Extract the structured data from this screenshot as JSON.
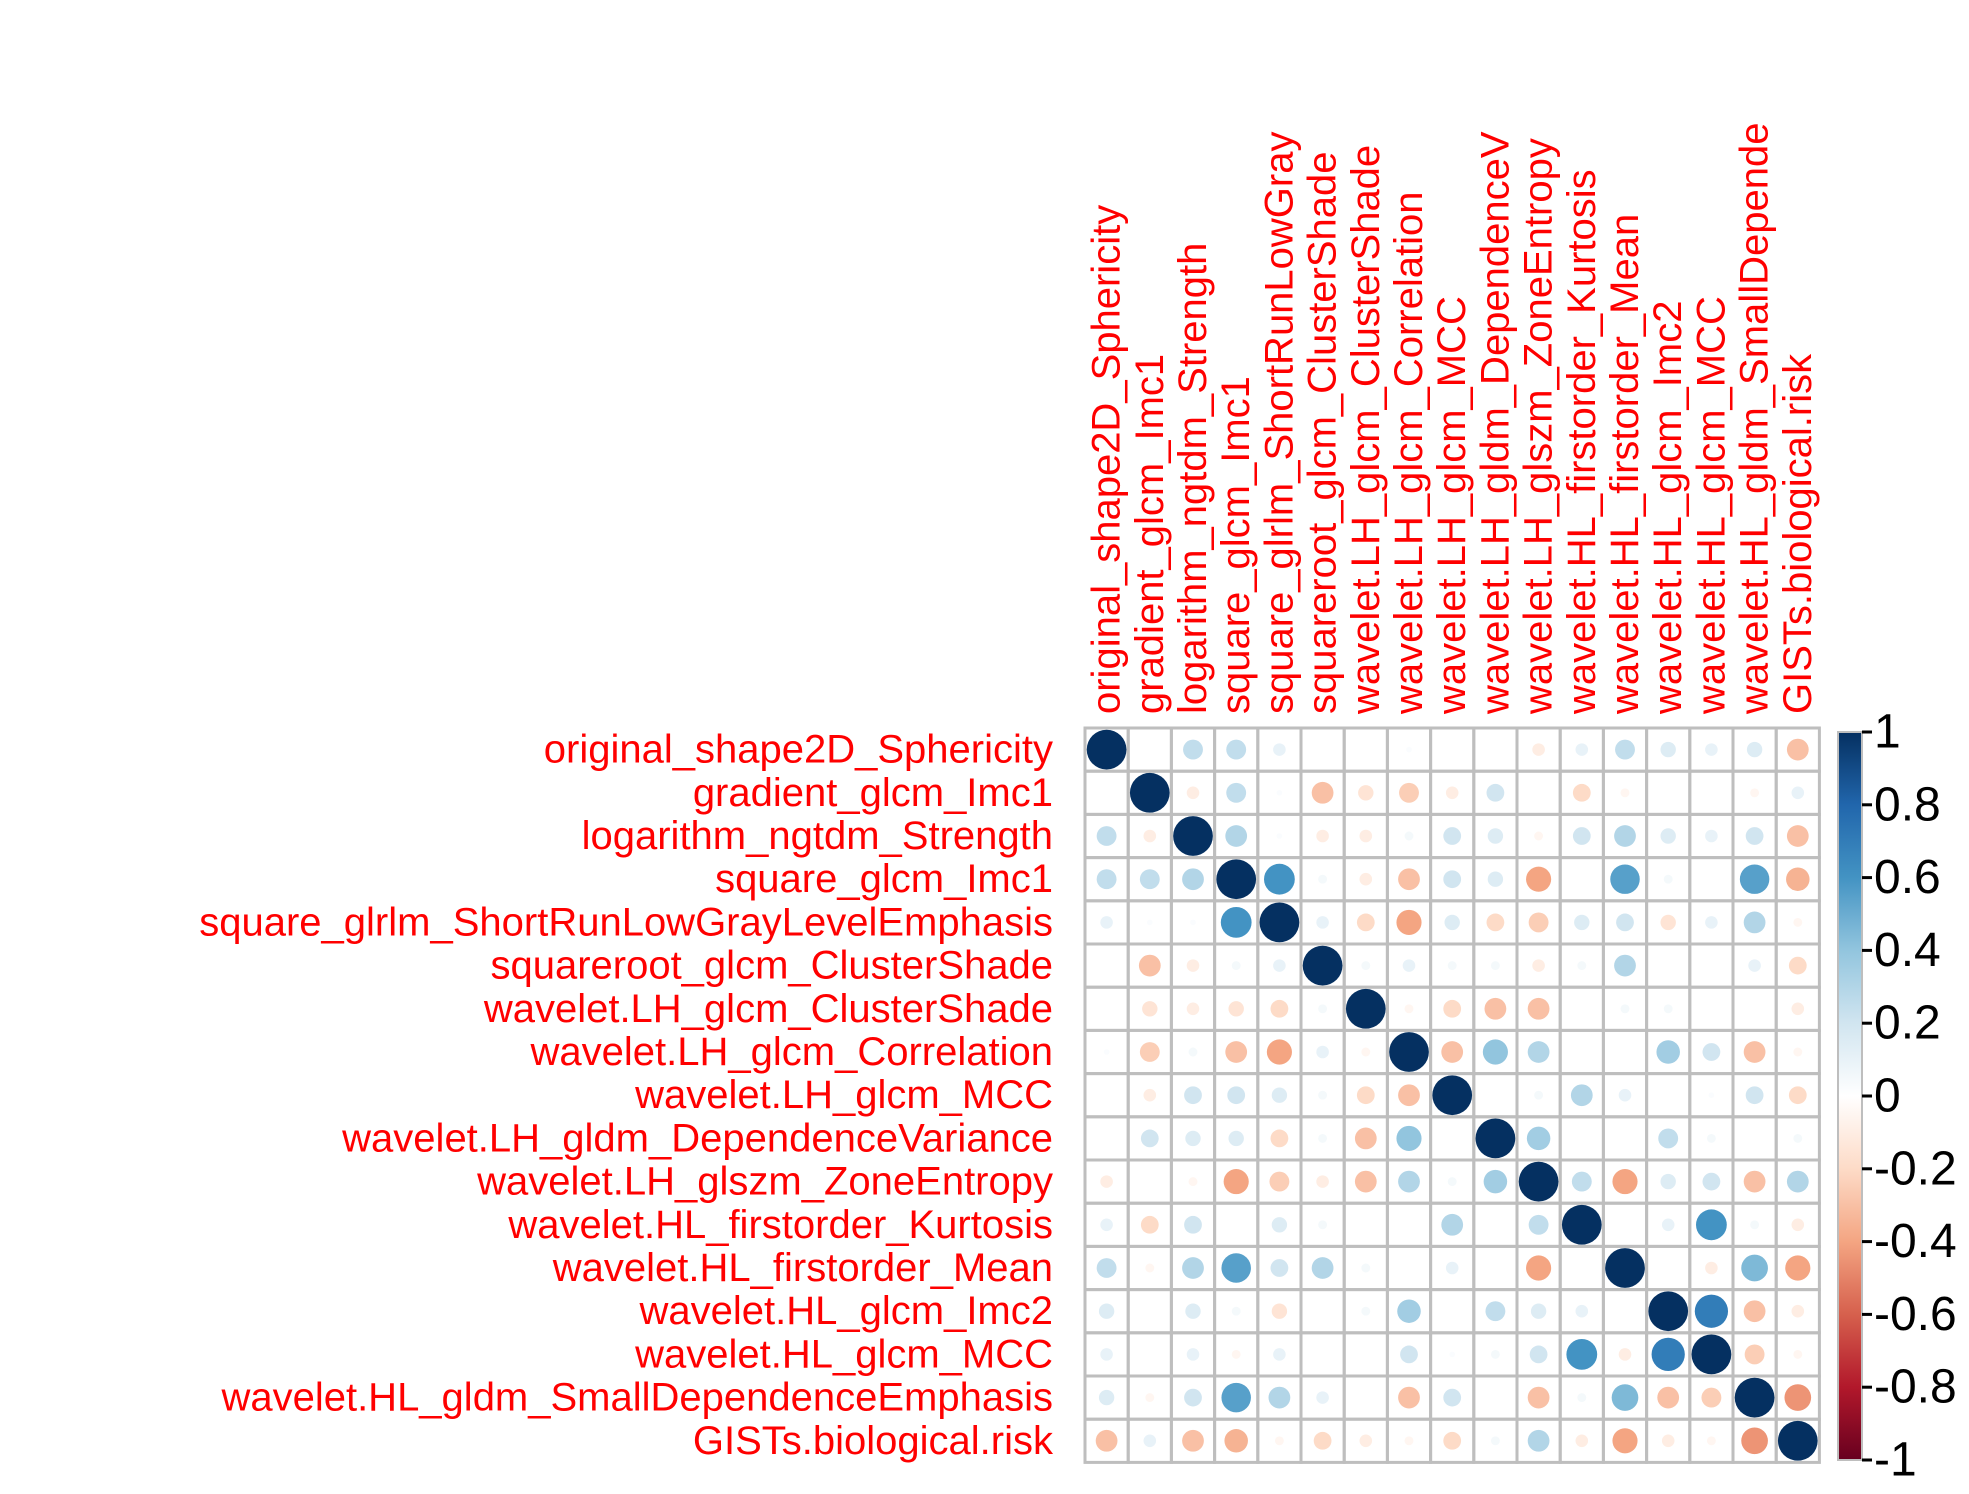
{
  "chart_data": {
    "type": "heatmap",
    "title": "",
    "variables": [
      "original_shape2D_Sphericity",
      "gradient_glcm_Imc1",
      "logarithm_ngtdm_Strength",
      "square_glcm_Imc1",
      "square_glrlm_ShortRunLowGrayLevelEmphasis",
      "squareroot_glcm_ClusterShade",
      "wavelet.LH_glcm_ClusterShade",
      "wavelet.LH_glcm_Correlation",
      "wavelet.LH_glcm_MCC",
      "wavelet.LH_gldm_DependenceVariance",
      "wavelet.LH_glszm_ZoneEntropy",
      "wavelet.HL_firstorder_Kurtosis",
      "wavelet.HL_firstorder_Mean",
      "wavelet.HL_glcm_Imc2",
      "wavelet.HL_glcm_MCC",
      "wavelet.HL_gldm_SmallDependenceEmphasis",
      "GISTs.biological.risk"
    ],
    "column_labels": [
      "original_shape2D_Sphericity",
      "gradient_glcm_Imc1",
      "logarithm_ngtdm_Strength",
      "square_glcm_Imc1",
      "square_glrlm_ShortRunLowGray",
      "squareroot_glcm_ClusterShade",
      "wavelet.LH_glcm_ClusterShade",
      "wavelet.LH_glcm_Correlation",
      "wavelet.LH_glcm_MCC",
      "wavelet.LH_gldm_DependenceV",
      "wavelet.LH_glszm_ZoneEntropy",
      "wavelet.HL_firstorder_Kurtosis",
      "wavelet.HL_firstorder_Mean",
      "wavelet.HL_glcm_Imc2",
      "wavelet.HL_glcm_MCC",
      "wavelet.HL_gldm_SmallDepende",
      "GISTs.biological.risk"
    ],
    "matrix": [
      [
        1,
        0,
        0.25,
        0.25,
        0.1,
        0,
        0,
        0.02,
        0,
        0,
        -0.1,
        0.1,
        0.25,
        0.15,
        0.1,
        0.15,
        -0.3
      ],
      [
        0,
        1,
        -0.1,
        0.25,
        0.02,
        -0.3,
        -0.15,
        -0.25,
        -0.1,
        0.2,
        0,
        -0.2,
        -0.05,
        0,
        0,
        -0.05,
        0.1
      ],
      [
        0.25,
        -0.1,
        1,
        0.3,
        0.02,
        -0.1,
        -0.1,
        0.05,
        0.2,
        0.15,
        -0.05,
        0.2,
        0.3,
        0.15,
        0.1,
        0.2,
        -0.3
      ],
      [
        0.25,
        0.25,
        0.3,
        1,
        0.6,
        0.05,
        -0.1,
        -0.3,
        0.2,
        0.15,
        -0.4,
        0,
        0.55,
        0.05,
        0,
        0.55,
        -0.35
      ],
      [
        0.1,
        0.02,
        0.02,
        0.6,
        1,
        0.1,
        -0.2,
        -0.4,
        0.15,
        -0.2,
        -0.25,
        0.15,
        0.2,
        -0.15,
        0.1,
        0.3,
        -0.05
      ],
      [
        0,
        -0.3,
        -0.1,
        0.05,
        0.1,
        1,
        0.05,
        0.1,
        0.05,
        0.05,
        -0.1,
        0.05,
        0.3,
        0,
        0,
        0.1,
        -0.2
      ],
      [
        0,
        -0.15,
        -0.1,
        -0.15,
        -0.2,
        0.05,
        1,
        -0.05,
        -0.2,
        -0.3,
        -0.3,
        0,
        0.05,
        0.05,
        0,
        0,
        -0.1
      ],
      [
        0.02,
        -0.25,
        0.05,
        -0.3,
        -0.4,
        0.1,
        -0.05,
        1,
        -0.3,
        0.4,
        0.3,
        0,
        0,
        0.35,
        0.2,
        -0.3,
        -0.05
      ],
      [
        0,
        -0.1,
        0.2,
        0.2,
        0.15,
        0.05,
        -0.2,
        -0.3,
        1,
        0,
        0.05,
        0.3,
        0.1,
        0,
        0.02,
        0.2,
        -0.2
      ],
      [
        0,
        0.2,
        0.15,
        0.15,
        -0.2,
        0.05,
        -0.3,
        0.4,
        0,
        1,
        0.35,
        0,
        0,
        0.25,
        0.05,
        0,
        0.05
      ],
      [
        -0.1,
        0,
        -0.05,
        -0.4,
        -0.25,
        -0.1,
        -0.3,
        0.3,
        0.05,
        0.35,
        1,
        0.25,
        -0.4,
        0.15,
        0.2,
        -0.3,
        0.3
      ],
      [
        0.1,
        -0.2,
        0.2,
        0,
        0.15,
        0.05,
        0,
        0,
        0.3,
        0,
        0.25,
        1,
        0,
        0.1,
        0.6,
        0.05,
        -0.1
      ],
      [
        0.25,
        -0.05,
        0.3,
        0.55,
        0.2,
        0.3,
        0.05,
        0,
        0.1,
        0,
        -0.4,
        0,
        1,
        0,
        -0.1,
        0.45,
        -0.4
      ],
      [
        0.15,
        0,
        0.15,
        0.05,
        -0.15,
        0,
        0.05,
        0.35,
        0,
        0.25,
        0.15,
        0.1,
        0,
        1,
        0.7,
        -0.3,
        -0.1
      ],
      [
        0.1,
        0,
        0.1,
        -0.05,
        0.1,
        0,
        0,
        0.2,
        0.02,
        0.05,
        0.2,
        0.6,
        -0.1,
        0.7,
        1,
        -0.25,
        -0.05
      ],
      [
        0.15,
        -0.05,
        0.2,
        0.55,
        0.3,
        0.1,
        0,
        -0.3,
        0.2,
        0,
        -0.3,
        0.05,
        0.45,
        -0.3,
        -0.25,
        1,
        -0.45
      ],
      [
        -0.3,
        0.1,
        -0.3,
        -0.35,
        -0.05,
        -0.2,
        -0.1,
        -0.05,
        -0.2,
        0.05,
        0.3,
        -0.1,
        -0.4,
        -0.1,
        -0.05,
        -0.45,
        1
      ]
    ],
    "colorbar_ticks": [
      "1",
      "0.8",
      "0.6",
      "0.4",
      "0.2",
      "0",
      "-0.2",
      "-0.4",
      "-0.6",
      "-0.8",
      "-1"
    ],
    "colorbar_range": [
      -1,
      1
    ],
    "label_color": "#ff0000",
    "colormap": [
      "#67001f",
      "#b2182b",
      "#d6604d",
      "#f4a582",
      "#fddbc7",
      "#ffffff",
      "#d1e5f0",
      "#92c5de",
      "#4393c3",
      "#2166ac",
      "#053061"
    ]
  }
}
